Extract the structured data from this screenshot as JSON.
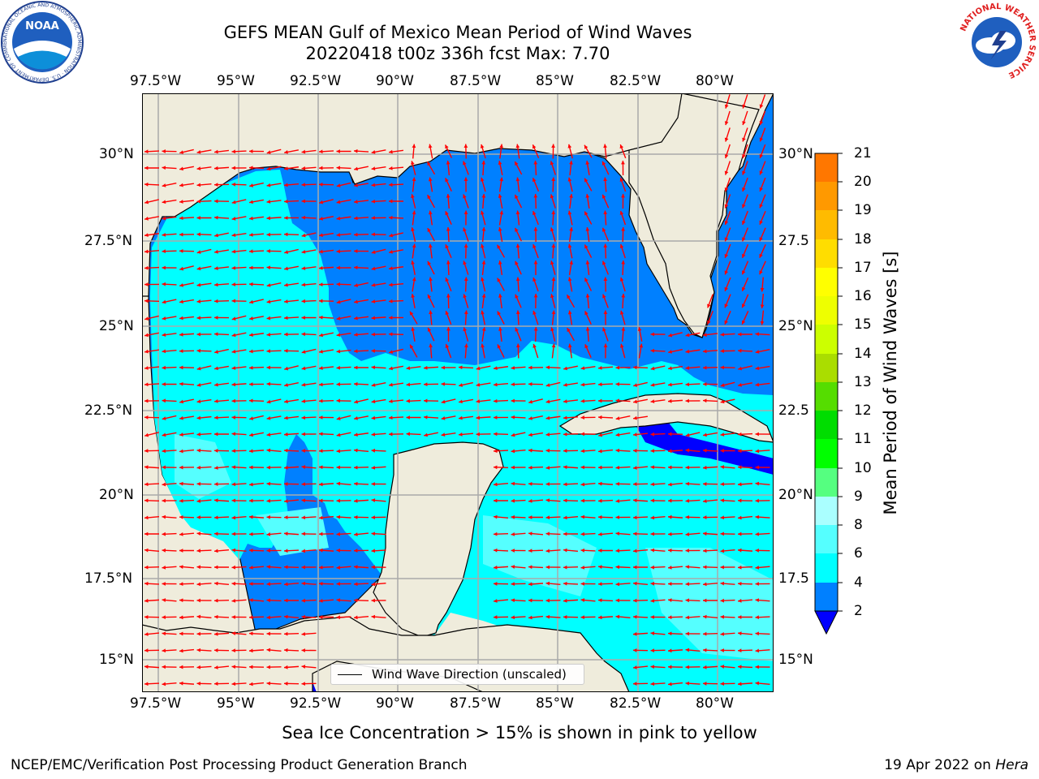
{
  "header": {
    "title_line1": "GEFS MEAN Gulf of Mexico Mean Period of Wind Waves",
    "title_line2": "20220418 t00z 336h fcst   Max: 7.70"
  },
  "logos": {
    "noaa": "NOAA",
    "noaa_ring": "NATIONAL OCEANIC AND ATMOSPHERIC ADMINISTRATION · U.S. DEPARTMENT OF COMMERCE",
    "nws": "NATIONAL WEATHER SERVICE"
  },
  "map": {
    "lon_ticks": [
      "97.5°W",
      "95°W",
      "92.5°W",
      "90°W",
      "87.5°W",
      "85°W",
      "82.5°W",
      "80°W"
    ],
    "lat_ticks_left": [
      "30°N",
      "27.5°N",
      "25°N",
      "22.5°N",
      "20°N",
      "17.5°N",
      "15°N"
    ],
    "lat_ticks_right": [
      "30°N",
      "27.5",
      "25°N",
      "22.5",
      "20°N",
      "17.5",
      "15°N"
    ],
    "colors": {
      "land": "#efecdc",
      "ocean_2_4": "#0080ff",
      "ocean_4_6": "#00ffff",
      "ocean_6_8": "#55ffff",
      "ocean_lt2": "#0000ff",
      "arrows": "#ff0000",
      "grid": "#aaaaaa"
    }
  },
  "legend": {
    "label": "Wind Wave Direction (unscaled)"
  },
  "colorbar": {
    "label": "Mean Period of Wind Waves [s]",
    "ticks": [
      "2",
      "4",
      "6",
      "8",
      "9",
      "10",
      "11",
      "12",
      "13",
      "14",
      "15",
      "16",
      "17",
      "18",
      "19",
      "20",
      "21"
    ],
    "colors": [
      "#0000ff",
      "#0080ff",
      "#00ffff",
      "#55ffff",
      "#aaffff",
      "#55ff80",
      "#00ff00",
      "#00dd00",
      "#55dd00",
      "#aadd00",
      "#ccff00",
      "#eeff00",
      "#ffff00",
      "#ffdd00",
      "#ffbb00",
      "#ff9900",
      "#ff7700",
      "#ff5500",
      "#ff2200",
      "#ff0000"
    ]
  },
  "subtitle": "Sea Ice Concentration > 15% is shown in pink to yellow",
  "footer": {
    "left": "NCEP/EMC/Verification Post Processing Product Generation Branch",
    "right_date": "19 Apr 2022 on ",
    "right_host": "Hera"
  }
}
